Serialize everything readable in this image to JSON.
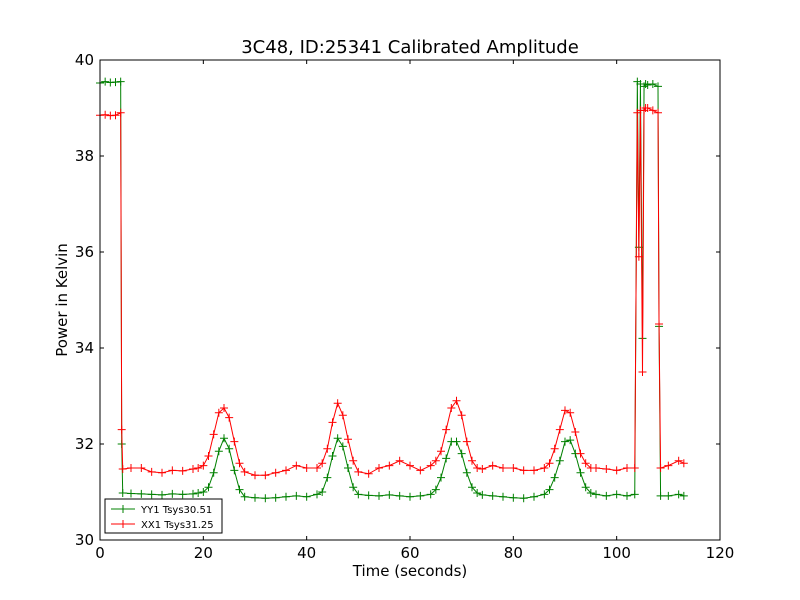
{
  "chart_data": {
    "type": "line",
    "title": "3C48, ID:25341 Calibrated Amplitude",
    "xlabel": "Time (seconds)",
    "ylabel": "Power in Kelvin",
    "xlim": [
      0,
      120
    ],
    "ylim": [
      30,
      40
    ],
    "xticks": [
      "0",
      "20",
      "40",
      "60",
      "80",
      "100",
      "120"
    ],
    "yticks": [
      "30",
      "32",
      "34",
      "36",
      "38",
      "40"
    ],
    "grid": false,
    "legend_position": "lower-left",
    "series": [
      {
        "name": "YY1 Tsys30.51",
        "color": "#008000",
        "marker": "+",
        "x": [
          0,
          1,
          2,
          3,
          4,
          4.2,
          4.4,
          6,
          8,
          10,
          12,
          14,
          16,
          18,
          19,
          20,
          21,
          22,
          23,
          24,
          25,
          26,
          27,
          28,
          30,
          32,
          34,
          36,
          38,
          40,
          42,
          43,
          44,
          45,
          46,
          47,
          48,
          49,
          50,
          52,
          54,
          56,
          58,
          60,
          62,
          64,
          65,
          66,
          67,
          68,
          69,
          70,
          71,
          72,
          73,
          74,
          76,
          78,
          80,
          82,
          84,
          86,
          87,
          88,
          89,
          90,
          91,
          92,
          93,
          94,
          95,
          96,
          98,
          100,
          102,
          103.5,
          104,
          104.3,
          104.6,
          105,
          105.3,
          105.6,
          106,
          107,
          108,
          108.2,
          108.5,
          110,
          112,
          113
        ],
        "y": [
          39.52,
          39.55,
          39.53,
          39.54,
          39.55,
          32.0,
          30.98,
          30.97,
          30.96,
          30.95,
          30.94,
          30.96,
          30.95,
          30.96,
          30.98,
          31.0,
          31.1,
          31.4,
          31.85,
          32.12,
          31.9,
          31.45,
          31.05,
          30.9,
          30.88,
          30.87,
          30.88,
          30.9,
          30.92,
          30.9,
          30.95,
          31.0,
          31.3,
          31.75,
          32.12,
          31.95,
          31.5,
          31.1,
          30.95,
          30.93,
          30.92,
          30.94,
          30.92,
          30.9,
          30.92,
          30.95,
          31.05,
          31.3,
          31.7,
          32.05,
          32.05,
          31.8,
          31.4,
          31.1,
          30.98,
          30.94,
          30.92,
          30.9,
          30.88,
          30.87,
          30.9,
          30.95,
          31.05,
          31.3,
          31.65,
          32.05,
          32.08,
          31.8,
          31.4,
          31.1,
          30.98,
          30.95,
          30.92,
          30.95,
          30.92,
          30.95,
          39.55,
          36.1,
          39.5,
          34.2,
          39.45,
          39.5,
          39.48,
          39.5,
          39.45,
          34.45,
          30.92,
          30.92,
          30.95,
          30.92
        ]
      },
      {
        "name": "XX1 Tsys31.25",
        "color": "#ff0000",
        "marker": "+",
        "x": [
          0,
          1,
          2,
          3,
          4,
          4.2,
          4.4,
          6,
          8,
          10,
          12,
          14,
          16,
          18,
          19,
          20,
          21,
          22,
          23,
          24,
          25,
          26,
          27,
          28,
          30,
          32,
          34,
          36,
          38,
          40,
          42,
          43,
          44,
          45,
          46,
          47,
          48,
          49,
          50,
          52,
          54,
          56,
          58,
          60,
          62,
          64,
          65,
          66,
          67,
          68,
          69,
          70,
          71,
          72,
          73,
          74,
          76,
          78,
          80,
          82,
          84,
          86,
          87,
          88,
          89,
          90,
          91,
          92,
          93,
          94,
          95,
          96,
          98,
          100,
          102,
          103.5,
          104,
          104.3,
          104.6,
          105,
          105.3,
          105.6,
          106,
          107,
          108,
          108.2,
          108.5,
          110,
          112,
          113
        ],
        "y": [
          38.85,
          38.86,
          38.84,
          38.85,
          38.9,
          32.3,
          31.48,
          31.5,
          31.5,
          31.42,
          31.4,
          31.45,
          31.44,
          31.48,
          31.5,
          31.55,
          31.75,
          32.2,
          32.65,
          32.75,
          32.55,
          32.05,
          31.6,
          31.42,
          31.35,
          31.35,
          31.4,
          31.45,
          31.55,
          31.5,
          31.5,
          31.6,
          31.9,
          32.45,
          32.85,
          32.6,
          32.1,
          31.65,
          31.42,
          31.38,
          31.5,
          31.55,
          31.65,
          31.55,
          31.45,
          31.55,
          31.65,
          31.85,
          32.3,
          32.75,
          32.9,
          32.6,
          32.05,
          31.65,
          31.5,
          31.48,
          31.55,
          31.5,
          31.5,
          31.45,
          31.45,
          31.5,
          31.6,
          31.9,
          32.3,
          32.7,
          32.65,
          32.25,
          31.8,
          31.6,
          31.5,
          31.5,
          31.48,
          31.45,
          31.5,
          31.5,
          38.9,
          35.9,
          38.95,
          33.5,
          38.95,
          39.0,
          39.0,
          38.95,
          38.9,
          34.5,
          31.5,
          31.55,
          31.65,
          31.6
        ]
      }
    ]
  }
}
